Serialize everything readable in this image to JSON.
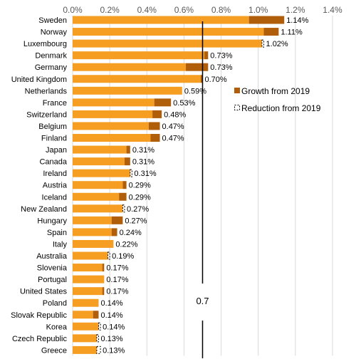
{
  "chart_data": {
    "type": "bar",
    "orientation": "horizontal",
    "stacked": true,
    "categories": [
      "Sweden",
      "Norway",
      "Luxembourg",
      "Denmark",
      "Germany",
      "United Kingdom",
      "Netherlands",
      "France",
      "Switzerland",
      "Belgium",
      "Finland",
      "Japan",
      "Canada",
      "Ireland",
      "Austria",
      "Iceland",
      "New Zealand",
      "Hungary",
      "Spain",
      "Italy",
      "Australia",
      "Slovenia",
      "Portugal",
      "United States",
      "Poland",
      "Slovak Republic",
      "Korea",
      "Czech Republic",
      "Greece"
    ],
    "total_labels": [
      "1.14%",
      "1.11%",
      "1.02%",
      "0.73%",
      "0.73%",
      "0.70%",
      "0.59%",
      "0.53%",
      "0.48%",
      "0.47%",
      "0.47%",
      "0.31%",
      "0.31%",
      "0.31%",
      "0.29%",
      "0.29%",
      "0.27%",
      "0.27%",
      "0.24%",
      "0.22%",
      "0.19%",
      "0.17%",
      "0.17%",
      "0.17%",
      "0.14%",
      "0.14%",
      "0.14%",
      "0.13%",
      "0.13%"
    ],
    "series": [
      {
        "name": "",
        "color": "#F59E22",
        "values": [
          0.95,
          1.03,
          1.02,
          0.71,
          0.61,
          0.69,
          0.59,
          0.44,
          0.43,
          0.41,
          0.42,
          0.29,
          0.28,
          0.31,
          0.27,
          0.25,
          0.27,
          0.21,
          0.21,
          0.22,
          0.19,
          0.16,
          0.17,
          0.16,
          0.14,
          0.11,
          0.14,
          0.13,
          0.13
        ]
      },
      {
        "name": "Growth from 2019",
        "color": "#B15E0A",
        "values": [
          0.19,
          0.08,
          0.0,
          0.02,
          0.12,
          0.01,
          0.0,
          0.09,
          0.05,
          0.06,
          0.05,
          0.02,
          0.03,
          0.0,
          0.02,
          0.04,
          0.0,
          0.06,
          0.03,
          0.0,
          0.0,
          0.01,
          0.0,
          0.01,
          0.0,
          0.03,
          0.0,
          0.0,
          0.0
        ]
      },
      {
        "name": "Reduction from 2019",
        "style": "dashed-outline",
        "values": [
          0.0,
          0.0,
          0.01,
          0.0,
          0.0,
          0.0,
          0.0,
          0.0,
          0.0,
          0.0,
          0.0,
          0.0,
          0.0,
          0.01,
          0.0,
          0.0,
          0.01,
          0.0,
          0.0,
          0.0,
          0.01,
          0.0,
          0.0,
          0.0,
          0.0,
          0.0,
          0.01,
          0.01,
          0.02
        ]
      }
    ],
    "xlim": [
      0,
      1.4
    ],
    "xticks": [
      0,
      0.2,
      0.4,
      0.6,
      0.8,
      1.0,
      1.2,
      1.4
    ],
    "xtick_labels": [
      "0.0%",
      "0.2%",
      "0.4%",
      "0.6%",
      "0.8%",
      "1.0%",
      "1.2%",
      "1.4%"
    ],
    "reference_line": {
      "value": 0.7,
      "label": "0.7"
    },
    "legend": {
      "position": "right",
      "entries": [
        "Growth from 2019",
        "Reduction from 2019"
      ]
    },
    "title": "",
    "xlabel": "",
    "ylabel": "",
    "grid": true
  }
}
